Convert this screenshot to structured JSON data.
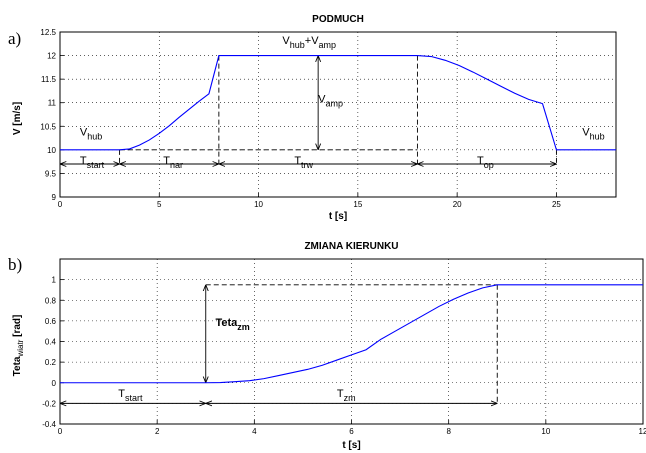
{
  "chart_data": [
    {
      "type": "line",
      "panel_label": "a)",
      "title": "PODMUCH",
      "xlabel": "t [s]",
      "ylabel": "V [m/s]",
      "xlim": [
        0,
        28
      ],
      "ylim": [
        9,
        12.5
      ],
      "xticks": [
        0,
        5,
        10,
        15,
        20,
        25
      ],
      "yticks": [
        9,
        9.5,
        10,
        10.5,
        11,
        11.5,
        12,
        12.5
      ],
      "grid": true,
      "color": "#0000ff",
      "series": [
        {
          "x": [
            0,
            3,
            3.5,
            4,
            4.5,
            5,
            5.5,
            6,
            6.5,
            7,
            7.5,
            8,
            18,
            18.7,
            19.4,
            20.1,
            20.8,
            21.5,
            22.2,
            22.9,
            23.6,
            24.3,
            25,
            28
          ],
          "values": [
            10,
            10,
            10.02,
            10.1,
            10.21,
            10.35,
            10.51,
            10.69,
            10.86,
            11.03,
            11.19,
            12,
            12,
            11.98,
            11.9,
            11.79,
            11.65,
            11.5,
            11.35,
            11.2,
            11.07,
            10.98,
            10,
            10
          ]
        }
      ],
      "annotations": [
        {
          "id": "vhub-left",
          "base": "V",
          "sub": "hub",
          "x": 1,
          "y": 10.3
        },
        {
          "id": "vhub-right",
          "base": "V",
          "sub": "hub",
          "x": 26.3,
          "y": 10.3
        },
        {
          "id": "vhub-vamp",
          "base": "V",
          "sub": "hub",
          "mid": "+V",
          "sub2": "amp",
          "x": 11.2,
          "y": 12.25
        },
        {
          "id": "vamp",
          "base": "V",
          "sub": "amp",
          "x": 13,
          "y": 11
        },
        {
          "id": "tstart",
          "base": "T",
          "sub": "start",
          "x": 1,
          "y": 9.7
        },
        {
          "id": "tnar",
          "base": "T",
          "sub": "nar",
          "x": 5.2,
          "y": 9.7
        },
        {
          "id": "ttrw",
          "base": "T",
          "sub": "trw",
          "x": 11.8,
          "y": 9.7
        },
        {
          "id": "top",
          "base": "T",
          "sub": "op",
          "x": 21,
          "y": 9.7
        }
      ],
      "dimension_lines": [
        {
          "axis": "x",
          "y": 9.7,
          "from": 0,
          "to": 3
        },
        {
          "axis": "x",
          "y": 9.7,
          "from": 3,
          "to": 8
        },
        {
          "axis": "x",
          "y": 9.7,
          "from": 8,
          "to": 18
        },
        {
          "axis": "x",
          "y": 9.7,
          "from": 18,
          "to": 25
        },
        {
          "axis": "y",
          "x": 13,
          "from": 10,
          "to": 12
        }
      ],
      "dashed_lines": [
        {
          "x1": 8,
          "y1": 12,
          "x2": 8,
          "y2": 9.7
        },
        {
          "x1": 18,
          "y1": 12,
          "x2": 18,
          "y2": 9.7
        },
        {
          "x1": 3,
          "y1": 10,
          "x2": 3,
          "y2": 9.7
        },
        {
          "x1": 25,
          "y1": 10,
          "x2": 25,
          "y2": 9.7
        },
        {
          "x1": 3,
          "y1": 10,
          "x2": 18,
          "y2": 10
        }
      ]
    },
    {
      "type": "line",
      "panel_label": "b)",
      "title": "ZMIANA KIERUNKU",
      "xlabel": "t [s]",
      "ylabel_base": "Teta",
      "ylabel_sub": "wiatr",
      "ylabel_unit": "[rad]",
      "xlim": [
        0,
        12
      ],
      "ylim": [
        -0.4,
        1.2
      ],
      "xticks": [
        0,
        2,
        4,
        6,
        8,
        10,
        12
      ],
      "yticks": [
        -0.4,
        -0.2,
        0,
        0.2,
        0.4,
        0.6,
        0.8,
        1
      ],
      "grid": true,
      "color": "#0000ff",
      "series": [
        {
          "x": [
            0,
            3,
            3.3,
            3.6,
            3.9,
            4.2,
            4.5,
            4.8,
            5.1,
            5.4,
            5.7,
            6,
            6.3,
            6.6,
            6.9,
            7.2,
            7.5,
            7.8,
            8.1,
            8.4,
            8.7,
            9,
            12
          ],
          "values": [
            0,
            0,
            0.002,
            0.01,
            0.02,
            0.04,
            0.07,
            0.1,
            0.13,
            0.17,
            0.22,
            0.27,
            0.32,
            0.42,
            0.5,
            0.58,
            0.66,
            0.74,
            0.81,
            0.87,
            0.92,
            0.95,
            0.95
          ]
        }
      ],
      "annotations": [
        {
          "id": "teta-zm",
          "base": "Teta",
          "sub": "zm",
          "x": 3.2,
          "y": 0.55,
          "bold": true
        },
        {
          "id": "tstart",
          "base": "T",
          "sub": "start",
          "x": 1.2,
          "y": -0.14
        },
        {
          "id": "tzm",
          "base": "T",
          "sub": "zm",
          "x": 5.7,
          "y": -0.14
        }
      ],
      "dimension_lines": [
        {
          "axis": "x",
          "y": -0.2,
          "from": 0,
          "to": 3
        },
        {
          "axis": "x",
          "y": -0.2,
          "from": 3,
          "to": 9
        },
        {
          "axis": "y",
          "x": 3,
          "from": 0,
          "to": 0.95
        }
      ],
      "dashed_lines": [
        {
          "x1": 3,
          "y1": 0.95,
          "x2": 9,
          "y2": 0.95
        },
        {
          "x1": 9,
          "y1": 0.95,
          "x2": 9,
          "y2": -0.2
        }
      ]
    }
  ]
}
